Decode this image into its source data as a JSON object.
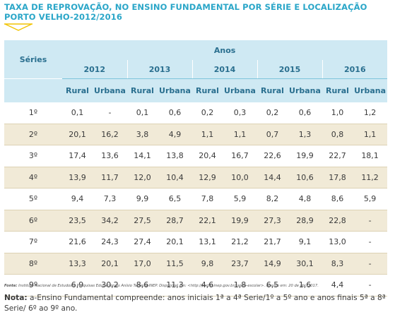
{
  "title_line1": "TAXA DE REPROVAÇÃO, NO ENSINO FUNDAMENTAL POR SÉRIE E LOCALIZAÇÃO",
  "title_line2": "PORTO VELHO-2012/2016",
  "colors": {
    "accent": "#2aa6c8",
    "header_bg": "#cfe9f3",
    "stripe_bg": "#f1ead7",
    "mark": "#f2c300"
  },
  "table": {
    "series_label": "Séries",
    "anos_label": "Anos",
    "years": [
      "2012",
      "2013",
      "2014",
      "2015",
      "2016"
    ],
    "rural_label": "Rural",
    "urbana_label": "Urbana",
    "rows": [
      {
        "serie": "1º",
        "values": [
          "0,1",
          "-",
          "0,1",
          "0,6",
          "0,2",
          "0,3",
          "0,2",
          "0,6",
          "1,0",
          "1,2"
        ]
      },
      {
        "serie": "2º",
        "values": [
          "20,1",
          "16,2",
          "3,8",
          "4,9",
          "1,1",
          "1,1",
          "0,7",
          "1,3",
          "0,8",
          "1,1"
        ]
      },
      {
        "serie": "3º",
        "values": [
          "17,4",
          "13,6",
          "14,1",
          "13,8",
          "20,4",
          "16,7",
          "22,6",
          "19,9",
          "22,7",
          "18,1"
        ]
      },
      {
        "serie": "4º",
        "values": [
          "13,9",
          "11,7",
          "12,0",
          "10,4",
          "12,9",
          "10,0",
          "14,4",
          "10,6",
          "17,8",
          "11,2"
        ]
      },
      {
        "serie": "5º",
        "values": [
          "9,4",
          "7,3",
          "9,9",
          "6,5",
          "7,8",
          "5,9",
          "8,2",
          "4,8",
          "8,6",
          "5,9"
        ]
      },
      {
        "serie": "6º",
        "values": [
          "23,5",
          "34,2",
          "27,5",
          "28,7",
          "22,1",
          "19,9",
          "27,3",
          "28,9",
          "22,8",
          "-"
        ]
      },
      {
        "serie": "7º",
        "values": [
          "21,6",
          "24,3",
          "27,4",
          "20,1",
          "13,1",
          "21,2",
          "21,7",
          "9,1",
          "13,0",
          "-"
        ]
      },
      {
        "serie": "8º",
        "values": [
          "13,3",
          "20,1",
          "17,0",
          "11,5",
          "9,8",
          "23,7",
          "14,9",
          "30,1",
          "8,3",
          "-"
        ]
      },
      {
        "serie": "9º",
        "values": [
          "6,9",
          "30,2",
          "8,6",
          "11,3",
          "4,6",
          "1,8",
          "6,5",
          "1,6",
          "4,4",
          "-"
        ]
      }
    ]
  },
  "source": {
    "label": "Fonte:",
    "text": "Instituto Nacional de Estudos e Pesquisas Educacionais Anísio Teixeira-INEP. Disponível em: <http://portal.inep.gov.br/censo-escolar>. Acesso em: 20 de abr. 2017."
  },
  "note": {
    "label": "Nota:",
    "text": " a-Ensino Fundamental compreende: anos iniciais 1ª a 4ª Serie/1º a 5º ano e anos finais 5ª a 8ª Serie/ 6º ao 9º ano."
  }
}
